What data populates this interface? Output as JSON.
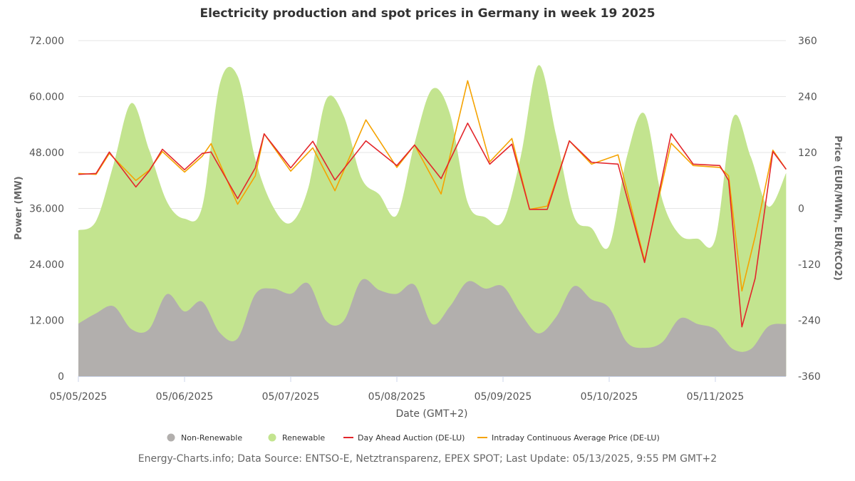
{
  "chart_data": {
    "type": "area+line",
    "title": "Electricity production and spot prices in Germany in week 19 2025",
    "xlabel": "Date (GMT+2)",
    "ylabel_left": "Power (MW)",
    "ylabel_right": "Price (EUR/MWh, EUR/tCO2)",
    "ylim_left": [
      0,
      72000
    ],
    "ylim_right": [
      -360,
      360
    ],
    "yticks_left": [
      "0",
      "12.000",
      "24.000",
      "36.000",
      "48.000",
      "60.000",
      "72.000"
    ],
    "yticks_right": [
      "-360",
      "-240",
      "-120",
      "0",
      "120",
      "240",
      "360"
    ],
    "xticks": [
      "05/05/2025",
      "05/06/2025",
      "05/07/2025",
      "05/08/2025",
      "05/09/2025",
      "05/10/2025",
      "05/11/2025"
    ],
    "grid": true,
    "legend_position": "bottom",
    "colors": {
      "non_renewable": "#b2afad",
      "renewable": "#c3e48f",
      "day_ahead": "#e3262b",
      "intraday": "#f5a300"
    },
    "power_time": [
      "05/05 00:00",
      "05/05 04:00",
      "05/05 08:00",
      "05/05 12:00",
      "05/05 16:00",
      "05/05 20:00",
      "05/06 00:00",
      "05/06 04:00",
      "05/06 08:00",
      "05/06 12:00",
      "05/06 16:00",
      "05/06 20:00",
      "05/07 00:00",
      "05/07 04:00",
      "05/07 08:00",
      "05/07 12:00",
      "05/07 16:00",
      "05/07 20:00",
      "05/08 00:00",
      "05/08 04:00",
      "05/08 08:00",
      "05/08 12:00",
      "05/08 16:00",
      "05/08 20:00",
      "05/09 00:00",
      "05/09 04:00",
      "05/09 08:00",
      "05/09 12:00",
      "05/09 16:00",
      "05/09 20:00",
      "05/10 00:00",
      "05/10 04:00",
      "05/10 08:00",
      "05/10 12:00",
      "05/10 16:00",
      "05/10 20:00",
      "05/11 00:00",
      "05/11 04:00",
      "05/11 08:00",
      "05/11 12:00",
      "05/11 16:00"
    ],
    "series": [
      {
        "name": "Non-Renewable",
        "kind": "stacked-area",
        "unit": "MW",
        "values": [
          11300,
          13500,
          15000,
          10100,
          10100,
          17600,
          13900,
          16000,
          9300,
          8100,
          17600,
          18800,
          17700,
          19900,
          11900,
          11900,
          20600,
          18500,
          17700,
          19600,
          11200,
          15000,
          20300,
          18800,
          19300,
          13500,
          9200,
          12700,
          19300,
          16500,
          14700,
          7300,
          6100,
          7300,
          12400,
          11200,
          10100,
          5800,
          5800,
          10700,
          11200
        ]
      },
      {
        "name": "Renewable",
        "kind": "stacked-area",
        "unit": "MW",
        "values": [
          20000,
          19800,
          30600,
          48500,
          38500,
          19900,
          19900,
          20400,
          53500,
          56300,
          29000,
          17600,
          15200,
          20600,
          47400,
          43900,
          21900,
          20500,
          16900,
          30400,
          50400,
          41300,
          17000,
          15300,
          14000,
          33600,
          57500,
          39000,
          15100,
          15300,
          13300,
          39800,
          50200,
          30600,
          17900,
          18300,
          19400,
          49700,
          41300,
          25700,
          32400
        ]
      },
      {
        "name": "Day Ahead Auction (DE-LU)",
        "kind": "line",
        "unit": "EUR/MWh",
        "time": [
          "05/05 00:00",
          "05/05 04:00",
          "05/05 07:00",
          "05/05 13:00",
          "05/05 16:00",
          "05/05 19:00",
          "05/06 00:00",
          "05/06 04:00",
          "05/06 06:00",
          "05/06 12:00",
          "05/06 16:00",
          "05/06 18:00",
          "05/07 00:00",
          "05/07 05:00",
          "05/07 10:00",
          "05/07 17:00",
          "05/08 00:00",
          "05/08 04:00",
          "05/08 10:00",
          "05/08 16:00",
          "05/08 21:00",
          "05/09 02:00",
          "05/09 06:00",
          "05/09 10:00",
          "05/09 15:00",
          "05/09 20:00",
          "05/10 02:00",
          "05/10 08:00",
          "05/10 14:00",
          "05/10 19:00",
          "05/11 01:00",
          "05/11 03:00",
          "05/11 06:00",
          "05/11 09:00",
          "05/11 13:00",
          "05/11 16:00"
        ],
        "values": [
          73,
          75,
          121,
          46,
          80,
          127,
          83,
          118,
          121,
          21,
          87,
          160,
          87,
          144,
          61,
          145,
          92,
          136,
          64,
          183,
          95,
          138,
          -2,
          -2,
          145,
          99,
          95,
          -116,
          160,
          95,
          92,
          60,
          -254,
          -150,
          122,
          84
        ]
      },
      {
        "name": "Intraday Continuous Average Price (DE-LU)",
        "kind": "line",
        "unit": "EUR/MWh",
        "time": [
          "05/05 00:00",
          "05/05 04:00",
          "05/05 07:00",
          "05/05 13:00",
          "05/05 16:00",
          "05/05 19:00",
          "05/06 00:00",
          "05/06 04:00",
          "05/06 06:00",
          "05/06 12:00",
          "05/06 16:00",
          "05/06 18:00",
          "05/07 00:00",
          "05/07 05:00",
          "05/07 10:00",
          "05/07 17:00",
          "05/08 00:00",
          "05/08 04:00",
          "05/08 10:00",
          "05/08 16:00",
          "05/08 21:00",
          "05/09 02:00",
          "05/09 06:00",
          "05/09 10:00",
          "05/09 15:00",
          "05/09 20:00",
          "05/10 02:00",
          "05/10 08:00",
          "05/10 14:00",
          "05/10 19:00",
          "05/11 01:00",
          "05/11 03:00",
          "05/11 06:00",
          "05/11 09:00",
          "05/11 13:00",
          "05/11 16:00"
        ],
        "values": [
          75,
          73,
          118,
          60,
          82,
          122,
          78,
          112,
          139,
          9,
          70,
          160,
          80,
          130,
          38,
          190,
          88,
          136,
          31,
          274,
          100,
          150,
          -2,
          5,
          145,
          95,
          115,
          -112,
          140,
          92,
          88,
          70,
          -177,
          -60,
          125,
          84
        ]
      }
    ]
  },
  "footer": "Energy-Charts.info; Data Source: ENTSO-E, Netztransparenz, EPEX SPOT; Last Update: 05/13/2025, 9:55 PM GMT+2"
}
